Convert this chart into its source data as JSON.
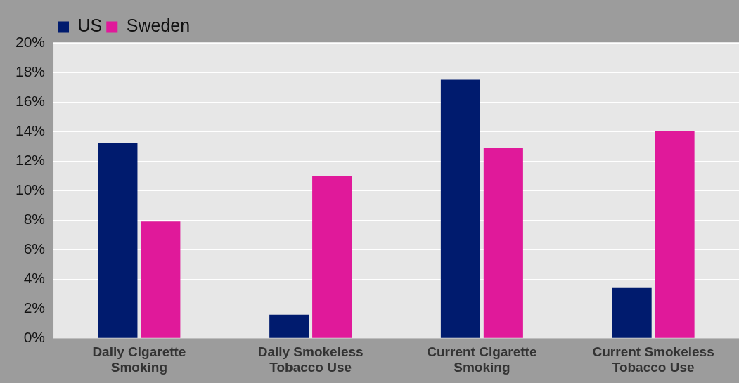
{
  "chart_data": {
    "type": "bar",
    "categories": [
      "Daily Cigarette Smoking",
      "Daily Smokeless Tobacco Use",
      "Current Cigarette Smoking",
      "Current Smokeless Tobacco Use"
    ],
    "series": [
      {
        "name": "US",
        "color": "#001b6e",
        "values": [
          13.2,
          1.6,
          17.5,
          3.4
        ]
      },
      {
        "name": "Sweden",
        "color": "#e0199a",
        "values": [
          7.9,
          11.0,
          12.9,
          14.0
        ]
      }
    ],
    "ylim": [
      0,
      20
    ],
    "yticks": [
      {
        "value": 0,
        "label": "0%"
      },
      {
        "value": 2,
        "label": "2%"
      },
      {
        "value": 4,
        "label": "4%"
      },
      {
        "value": 6,
        "label": "6%"
      },
      {
        "value": 8,
        "label": "8%"
      },
      {
        "value": 10,
        "label": "10%"
      },
      {
        "value": 12,
        "label": "12%"
      },
      {
        "value": 14,
        "label": "14%"
      },
      {
        "value": 16,
        "label": "16%"
      },
      {
        "value": 18,
        "label": "18%"
      },
      {
        "value": 20,
        "label": "20%"
      }
    ],
    "grid": "y",
    "legend": "top left"
  }
}
